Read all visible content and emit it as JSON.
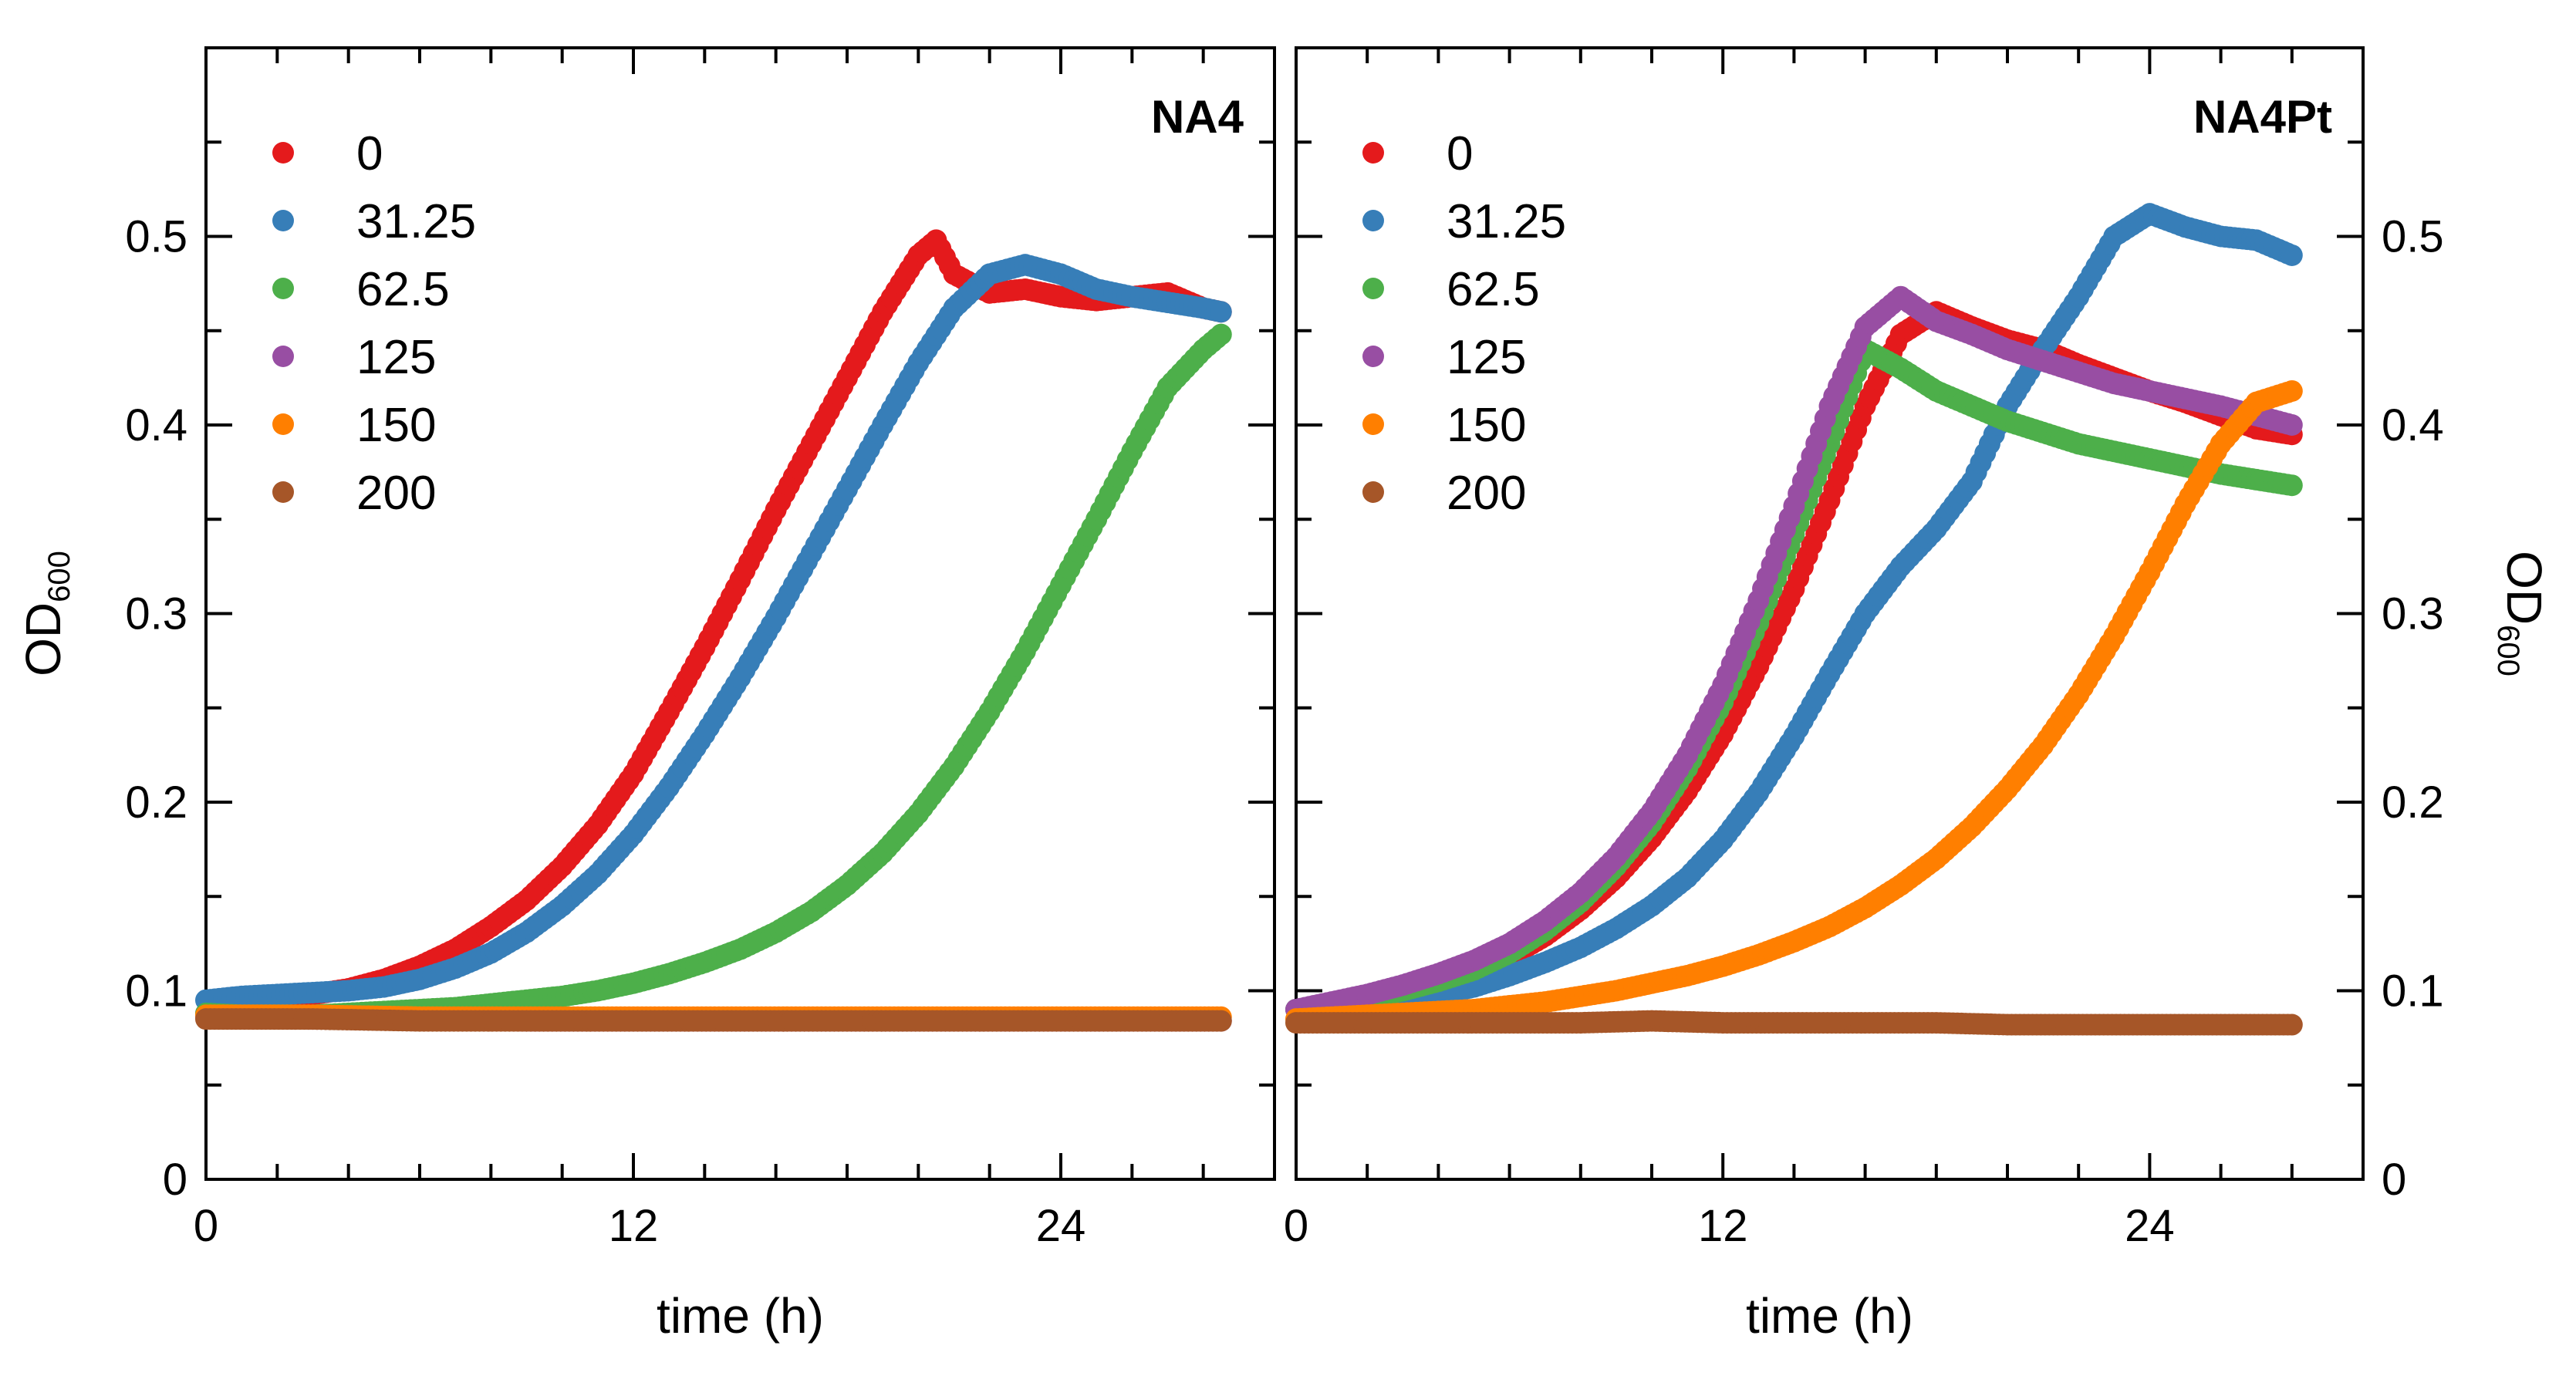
{
  "chart_data": [
    {
      "type": "scatter",
      "title": "NA4",
      "xlabel": "time (h)",
      "ylabel": "OD600",
      "ylabel_main": "OD",
      "ylabel_sub": "600",
      "xlim": [
        0,
        30
      ],
      "ylim": [
        0,
        0.6
      ],
      "x_ticks": [
        0,
        12,
        24
      ],
      "x_tick_labels": [
        "0",
        "12",
        "24"
      ],
      "y_ticks": [
        0,
        0.1,
        0.2,
        0.3,
        0.4,
        0.5
      ],
      "y_tick_labels": [
        "0",
        "0.1",
        "0.2",
        "0.3",
        "0.4",
        "0.5"
      ],
      "legend_position": "top-left",
      "series": [
        {
          "name": "0",
          "color": "#e41a1c",
          "x": [
            0,
            1,
            2,
            3,
            4,
            5,
            6,
            7,
            8,
            9,
            10,
            11,
            12,
            13,
            14,
            15,
            16,
            17,
            18,
            19,
            20,
            20.5,
            21,
            22,
            23,
            24,
            25,
            26,
            27,
            28,
            28.5
          ],
          "y": [
            0.088,
            0.092,
            0.095,
            0.098,
            0.101,
            0.106,
            0.113,
            0.122,
            0.134,
            0.148,
            0.166,
            0.188,
            0.215,
            0.248,
            0.282,
            0.318,
            0.355,
            0.39,
            0.425,
            0.46,
            0.49,
            0.498,
            0.48,
            0.47,
            0.472,
            0.468,
            0.466,
            0.468,
            0.47,
            0.462,
            0.46
          ]
        },
        {
          "name": "31.25",
          "color": "#377eb8",
          "x": [
            0,
            1,
            2,
            3,
            4,
            5,
            6,
            7,
            8,
            9,
            10,
            11,
            12,
            13,
            14,
            15,
            16,
            17,
            18,
            19,
            20,
            21,
            22,
            23,
            24,
            25,
            26,
            27,
            28,
            28.5
          ],
          "y": [
            0.095,
            0.097,
            0.098,
            0.099,
            0.1,
            0.102,
            0.106,
            0.112,
            0.12,
            0.131,
            0.145,
            0.162,
            0.183,
            0.208,
            0.236,
            0.266,
            0.298,
            0.332,
            0.366,
            0.4,
            0.433,
            0.462,
            0.48,
            0.485,
            0.48,
            0.472,
            0.468,
            0.465,
            0.462,
            0.46
          ]
        },
        {
          "name": "62.5",
          "color": "#4daf4a",
          "x": [
            0,
            1,
            2,
            3,
            4,
            5,
            6,
            7,
            8,
            9,
            10,
            11,
            12,
            13,
            14,
            15,
            16,
            17,
            18,
            19,
            20,
            21,
            22,
            23,
            24,
            25,
            26,
            27,
            28,
            28.5
          ],
          "y": [
            0.088,
            0.087,
            0.087,
            0.087,
            0.088,
            0.089,
            0.09,
            0.091,
            0.093,
            0.095,
            0.097,
            0.1,
            0.104,
            0.109,
            0.115,
            0.122,
            0.131,
            0.142,
            0.156,
            0.173,
            0.194,
            0.219,
            0.248,
            0.28,
            0.315,
            0.35,
            0.386,
            0.42,
            0.44,
            0.448
          ]
        },
        {
          "name": "125",
          "color": "#984ea3",
          "x": [
            0,
            3,
            6,
            9,
            12,
            15,
            18,
            21,
            24,
            27,
            28.5
          ],
          "y": [
            0.086,
            0.085,
            0.085,
            0.084,
            0.084,
            0.084,
            0.084,
            0.084,
            0.084,
            0.084,
            0.084
          ]
        },
        {
          "name": "150",
          "color": "#ff7f00",
          "x": [
            0,
            3,
            6,
            9,
            12,
            15,
            18,
            21,
            24,
            27,
            28.5
          ],
          "y": [
            0.087,
            0.087,
            0.086,
            0.086,
            0.086,
            0.086,
            0.086,
            0.086,
            0.086,
            0.086,
            0.086
          ]
        },
        {
          "name": "200",
          "color": "#a65628",
          "x": [
            0,
            3,
            6,
            9,
            12,
            15,
            18,
            21,
            24,
            27,
            28.5
          ],
          "y": [
            0.085,
            0.085,
            0.084,
            0.084,
            0.084,
            0.084,
            0.084,
            0.084,
            0.084,
            0.084,
            0.084
          ]
        }
      ]
    },
    {
      "type": "scatter",
      "title": "NA4Pt",
      "xlabel": "time (h)",
      "ylabel": "OD600",
      "ylabel_main": "OD",
      "ylabel_sub": "600",
      "xlim": [
        0,
        30
      ],
      "ylim": [
        0,
        0.6
      ],
      "x_ticks": [
        0,
        12,
        24
      ],
      "x_tick_labels": [
        "0",
        "12",
        "24"
      ],
      "y_ticks": [
        0,
        0.1,
        0.2,
        0.3,
        0.4,
        0.5
      ],
      "y_tick_labels": [
        "0",
        "0.1",
        "0.2",
        "0.3",
        "0.4",
        "0.5"
      ],
      "legend_position": "top-left",
      "series": [
        {
          "name": "0",
          "color": "#e41a1c",
          "x": [
            0,
            1,
            2,
            3,
            4,
            5,
            6,
            7,
            8,
            9,
            10,
            11,
            12,
            13,
            14,
            15,
            16,
            17,
            18,
            19,
            20,
            21,
            22,
            23,
            24,
            25,
            26,
            27,
            28
          ],
          "y": [
            0.09,
            0.093,
            0.096,
            0.1,
            0.104,
            0.11,
            0.118,
            0.129,
            0.143,
            0.16,
            0.181,
            0.206,
            0.236,
            0.272,
            0.313,
            0.36,
            0.41,
            0.448,
            0.46,
            0.452,
            0.445,
            0.44,
            0.432,
            0.425,
            0.418,
            0.412,
            0.405,
            0.398,
            0.395
          ]
        },
        {
          "name": "31.25",
          "color": "#377eb8",
          "x": [
            0,
            1,
            2,
            3,
            4,
            5,
            6,
            7,
            8,
            9,
            10,
            11,
            12,
            13,
            14,
            15,
            16,
            17,
            18,
            19,
            20,
            21,
            22,
            23,
            24,
            25,
            26,
            27,
            28
          ],
          "y": [
            0.09,
            0.091,
            0.093,
            0.095,
            0.098,
            0.102,
            0.108,
            0.115,
            0.123,
            0.133,
            0.145,
            0.16,
            0.18,
            0.205,
            0.235,
            0.268,
            0.3,
            0.325,
            0.345,
            0.37,
            0.41,
            0.44,
            0.468,
            0.5,
            0.512,
            0.505,
            0.5,
            0.498,
            0.49
          ]
        },
        {
          "name": "62.5",
          "color": "#4daf4a",
          "x": [
            0,
            1,
            2,
            3,
            4,
            5,
            6,
            7,
            8,
            9,
            10,
            11,
            12,
            13,
            14,
            15,
            16,
            17,
            18,
            19,
            20,
            21,
            22,
            23,
            24,
            25,
            26,
            27,
            28
          ],
          "y": [
            0.09,
            0.093,
            0.096,
            0.1,
            0.105,
            0.111,
            0.12,
            0.132,
            0.147,
            0.166,
            0.189,
            0.218,
            0.253,
            0.295,
            0.342,
            0.39,
            0.44,
            0.43,
            0.418,
            0.41,
            0.402,
            0.396,
            0.39,
            0.386,
            0.382,
            0.378,
            0.374,
            0.371,
            0.368
          ]
        },
        {
          "name": "125",
          "color": "#984ea3",
          "x": [
            0,
            1,
            2,
            3,
            4,
            5,
            6,
            7,
            8,
            9,
            10,
            11,
            12,
            13,
            14,
            15,
            16,
            17,
            18,
            19,
            20,
            21,
            22,
            23,
            24,
            25,
            26,
            27,
            28
          ],
          "y": [
            0.09,
            0.094,
            0.098,
            0.103,
            0.109,
            0.116,
            0.125,
            0.137,
            0.152,
            0.171,
            0.195,
            0.225,
            0.262,
            0.307,
            0.357,
            0.41,
            0.452,
            0.468,
            0.455,
            0.448,
            0.44,
            0.434,
            0.428,
            0.422,
            0.418,
            0.414,
            0.41,
            0.405,
            0.4
          ]
        },
        {
          "name": "150",
          "color": "#ff7f00",
          "x": [
            0,
            1,
            2,
            3,
            4,
            5,
            6,
            7,
            8,
            9,
            10,
            11,
            12,
            13,
            14,
            15,
            16,
            17,
            18,
            19,
            20,
            21,
            22,
            23,
            24,
            25,
            26,
            27,
            28
          ],
          "y": [
            0.085,
            0.086,
            0.087,
            0.088,
            0.089,
            0.09,
            0.092,
            0.094,
            0.097,
            0.1,
            0.104,
            0.108,
            0.113,
            0.119,
            0.126,
            0.134,
            0.144,
            0.156,
            0.17,
            0.187,
            0.207,
            0.23,
            0.257,
            0.288,
            0.322,
            0.358,
            0.39,
            0.412,
            0.418
          ]
        },
        {
          "name": "200",
          "color": "#a65628",
          "x": [
            0,
            2,
            4,
            6,
            8,
            10,
            12,
            14,
            16,
            18,
            20,
            22,
            24,
            26,
            28
          ],
          "y": [
            0.083,
            0.083,
            0.083,
            0.083,
            0.083,
            0.084,
            0.083,
            0.083,
            0.083,
            0.083,
            0.082,
            0.082,
            0.082,
            0.082,
            0.082
          ]
        }
      ]
    }
  ]
}
